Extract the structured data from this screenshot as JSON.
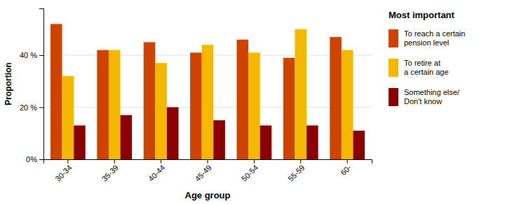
{
  "chart_data": {
    "type": "bar",
    "categories": [
      "30-34",
      "35-39",
      "40-44",
      "45-49",
      "50-54",
      "55-59",
      "60-"
    ],
    "series": [
      {
        "name": "To reach a certain\npension level",
        "color": "#CC4400",
        "values": [
          52,
          42,
          45,
          41,
          46,
          39,
          47
        ]
      },
      {
        "name": "To retire at\na certain age",
        "color": "#F5B800",
        "values": [
          32,
          42,
          37,
          44,
          41,
          50,
          42
        ]
      },
      {
        "name": "Something else/\nDon't know",
        "color": "#8B0000",
        "values": [
          13,
          17,
          20,
          15,
          13,
          13,
          11
        ]
      }
    ],
    "legend_title": "Most important",
    "xlabel": "Age group",
    "ylabel": "Proportion",
    "ylim": [
      0,
      58
    ],
    "yticks": [
      {
        "value": 0,
        "label": "0%"
      },
      {
        "value": 20,
        "label": "20 %"
      },
      {
        "value": 40,
        "label": "40 %"
      }
    ],
    "grid": true,
    "legend": "right"
  }
}
